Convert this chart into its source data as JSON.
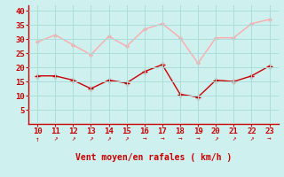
{
  "x": [
    10,
    11,
    12,
    13,
    14,
    15,
    16,
    17,
    18,
    19,
    20,
    21,
    22,
    23
  ],
  "y_mean": [
    17,
    17,
    15.5,
    12.5,
    15.5,
    14.5,
    18.5,
    21,
    10.5,
    9.5,
    15.5,
    15,
    17,
    20.5
  ],
  "y_gust": [
    29,
    31.5,
    28,
    24.5,
    31,
    27.5,
    33.5,
    35.5,
    30.5,
    21.5,
    30.5,
    30.5,
    35.5,
    37
  ],
  "wind_symbols": [
    "↑",
    "↗",
    "↗",
    "↗",
    "↗",
    "↗",
    "→",
    "→",
    "→",
    "→",
    "↗",
    "↗",
    "↗",
    "→"
  ],
  "xlabel": "Vent moyen/en rafales ( km/h )",
  "color_mean": "#cc0000",
  "color_gust": "#ffaaaa",
  "bg_color": "#cef0ee",
  "grid_color": "#aaddda",
  "axis_color": "#cc0000",
  "text_color": "#cc0000",
  "ylim": [
    0,
    42
  ],
  "yticks": [
    5,
    10,
    15,
    20,
    25,
    30,
    35,
    40
  ],
  "xlim": [
    9.5,
    23.5
  ],
  "xticks": [
    10,
    11,
    12,
    13,
    14,
    15,
    16,
    17,
    18,
    19,
    20,
    21,
    22,
    23
  ]
}
